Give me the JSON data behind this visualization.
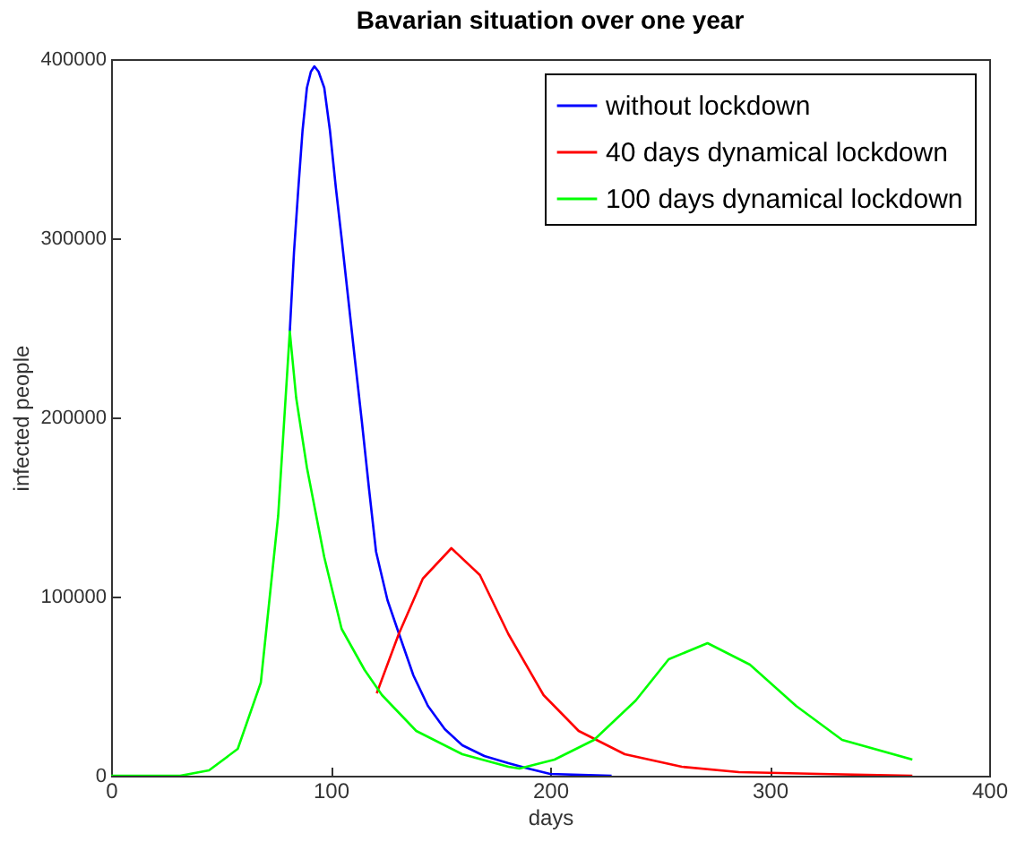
{
  "chart_data": {
    "type": "line",
    "title": "Bavarian situation over one year",
    "xlabel": "days",
    "ylabel": "infected people",
    "xlim": [
      0,
      400
    ],
    "xticks": [
      0,
      100,
      200,
      300,
      400
    ],
    "ylim": [
      0,
      400000
    ],
    "yticks": [
      0,
      100000,
      200000,
      300000,
      400000
    ],
    "grid": false,
    "legend": "top right",
    "line_style": "solid",
    "series": [
      {
        "name": "without lockdown",
        "color": "#0000ff",
        "x": [
          81.4,
          83.3,
          85.3,
          87.2,
          89.2,
          91,
          92.6,
          94.5,
          97.1,
          99.7,
          102.4,
          105,
          107.6,
          111,
          114.2,
          117.5,
          120.7,
          125.9,
          131.2,
          137.7,
          144.3,
          152,
          160,
          170,
          181,
          190,
          200,
          228
        ],
        "values": [
          248000,
          292000,
          328000,
          360000,
          384000,
          393000,
          396000,
          393000,
          384000,
          360000,
          328000,
          300000,
          271000,
          233000,
          198000,
          160000,
          125000,
          98000,
          79000,
          56000,
          39000,
          26000,
          17000,
          11000,
          7000,
          4000,
          1000,
          0
        ]
      },
      {
        "name": "40 days dynamical lockdown",
        "color": "#ff0000",
        "x": [
          121,
          131,
          142,
          155,
          168,
          181,
          197,
          213,
          234,
          260,
          286,
          323,
          365
        ],
        "values": [
          46000,
          79000,
          110000,
          127000,
          112000,
          79000,
          45000,
          25000,
          12000,
          5000,
          2000,
          1000,
          0
        ]
      },
      {
        "name": "100 days dynamical lockdown",
        "color": "#00ff00",
        "x": [
          0,
          31.5,
          44.6,
          57.7,
          68.2,
          76.1,
          81.4,
          84.3,
          89.2,
          97.1,
          105,
          115.5,
          123.4,
          139,
          160,
          181,
          186,
          202,
          220,
          239,
          254,
          271.7,
          291,
          312,
          333,
          365
        ],
        "values": [
          0,
          0,
          3000,
          15000,
          52000,
          145000,
          248000,
          211000,
          172000,
          122000,
          82000,
          59000,
          45000,
          25000,
          12000,
          5000,
          4000,
          9000,
          20000,
          42000,
          65000,
          74000,
          62000,
          39000,
          20000,
          9000
        ]
      }
    ]
  }
}
